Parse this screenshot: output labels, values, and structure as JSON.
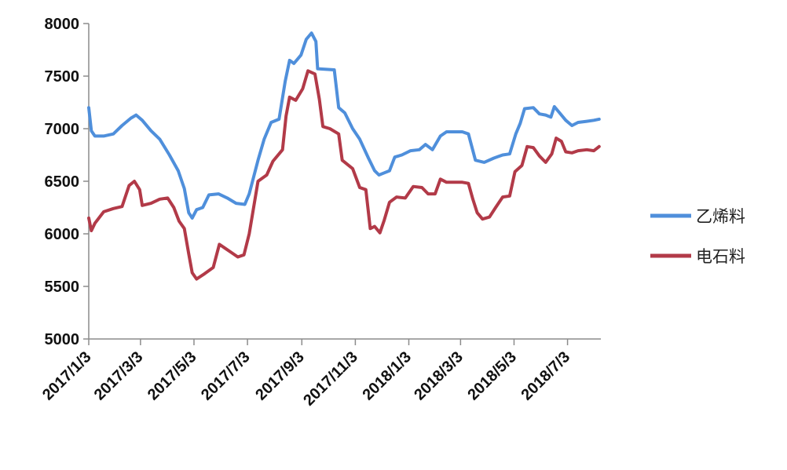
{
  "chart_data": {
    "type": "line",
    "title": "",
    "xlabel": "",
    "ylabel": "",
    "ylim": [
      5000,
      8000
    ],
    "yticks": [
      5000,
      5500,
      6000,
      6500,
      7000,
      7500,
      8000
    ],
    "xlim": [
      "2017-01-03",
      "2018-08-10"
    ],
    "x_tick_labels": [
      "2017/1/3",
      "2017/3/3",
      "2017/5/3",
      "2017/7/3",
      "2017/9/3",
      "2017/11/3",
      "2018/1/3",
      "2018/3/3",
      "2018/5/3",
      "2018/7/3"
    ],
    "x_tick_dates": [
      "2017-01-03",
      "2017-03-03",
      "2017-05-03",
      "2017-07-03",
      "2017-09-03",
      "2017-11-03",
      "2018-01-03",
      "2018-03-03",
      "2018-05-03",
      "2018-07-03"
    ],
    "grid": false,
    "legend_position": "right",
    "series": [
      {
        "name": "乙烯料",
        "color": "#4f8fdb",
        "points": [
          [
            "2017-01-03",
            7200
          ],
          [
            "2017-01-06",
            6980
          ],
          [
            "2017-01-10",
            6930
          ],
          [
            "2017-01-20",
            6930
          ],
          [
            "2017-01-31",
            6950
          ],
          [
            "2017-02-10",
            7030
          ],
          [
            "2017-02-20",
            7100
          ],
          [
            "2017-02-26",
            7130
          ],
          [
            "2017-03-05",
            7080
          ],
          [
            "2017-03-15",
            6980
          ],
          [
            "2017-03-25",
            6900
          ],
          [
            "2017-04-05",
            6750
          ],
          [
            "2017-04-15",
            6600
          ],
          [
            "2017-04-22",
            6430
          ],
          [
            "2017-04-27",
            6200
          ],
          [
            "2017-05-01",
            6150
          ],
          [
            "2017-05-06",
            6230
          ],
          [
            "2017-05-13",
            6250
          ],
          [
            "2017-05-20",
            6370
          ],
          [
            "2017-05-31",
            6380
          ],
          [
            "2017-06-10",
            6340
          ],
          [
            "2017-06-20",
            6290
          ],
          [
            "2017-06-30",
            6280
          ],
          [
            "2017-07-05",
            6380
          ],
          [
            "2017-07-15",
            6700
          ],
          [
            "2017-07-22",
            6900
          ],
          [
            "2017-07-30",
            7060
          ],
          [
            "2017-08-08",
            7090
          ],
          [
            "2017-08-15",
            7450
          ],
          [
            "2017-08-20",
            7650
          ],
          [
            "2017-08-25",
            7620
          ],
          [
            "2017-09-02",
            7700
          ],
          [
            "2017-09-08",
            7850
          ],
          [
            "2017-09-14",
            7910
          ],
          [
            "2017-09-19",
            7830
          ],
          [
            "2017-09-21",
            7570
          ],
          [
            "2017-10-10",
            7560
          ],
          [
            "2017-10-15",
            7200
          ],
          [
            "2017-10-22",
            7150
          ],
          [
            "2017-10-31",
            7000
          ],
          [
            "2017-11-08",
            6900
          ],
          [
            "2017-11-18",
            6720
          ],
          [
            "2017-11-25",
            6600
          ],
          [
            "2017-11-30",
            6560
          ],
          [
            "2017-12-06",
            6580
          ],
          [
            "2017-12-12",
            6600
          ],
          [
            "2017-12-18",
            6730
          ],
          [
            "2017-12-26",
            6750
          ],
          [
            "2018-01-05",
            6790
          ],
          [
            "2018-01-15",
            6800
          ],
          [
            "2018-01-22",
            6850
          ],
          [
            "2018-01-30",
            6800
          ],
          [
            "2018-02-08",
            6930
          ],
          [
            "2018-02-15",
            6970
          ],
          [
            "2018-02-25",
            6970
          ],
          [
            "2018-03-05",
            6970
          ],
          [
            "2018-03-12",
            6950
          ],
          [
            "2018-03-20",
            6700
          ],
          [
            "2018-03-30",
            6680
          ],
          [
            "2018-04-10",
            6720
          ],
          [
            "2018-04-20",
            6750
          ],
          [
            "2018-04-28",
            6760
          ],
          [
            "2018-05-05",
            6950
          ],
          [
            "2018-05-10",
            7050
          ],
          [
            "2018-05-15",
            7190
          ],
          [
            "2018-05-25",
            7200
          ],
          [
            "2018-06-01",
            7140
          ],
          [
            "2018-06-08",
            7130
          ],
          [
            "2018-06-14",
            7110
          ],
          [
            "2018-06-18",
            7210
          ],
          [
            "2018-06-24",
            7150
          ],
          [
            "2018-07-01",
            7080
          ],
          [
            "2018-07-08",
            7030
          ],
          [
            "2018-07-15",
            7060
          ],
          [
            "2018-07-25",
            7070
          ],
          [
            "2018-08-02",
            7080
          ],
          [
            "2018-08-08",
            7090
          ]
        ]
      },
      {
        "name": "电石料",
        "color": "#b23a48",
        "points": [
          [
            "2017-01-03",
            6150
          ],
          [
            "2017-01-06",
            6030
          ],
          [
            "2017-01-10",
            6100
          ],
          [
            "2017-01-20",
            6210
          ],
          [
            "2017-01-31",
            6240
          ],
          [
            "2017-02-10",
            6260
          ],
          [
            "2017-02-18",
            6460
          ],
          [
            "2017-02-24",
            6500
          ],
          [
            "2017-03-02",
            6420
          ],
          [
            "2017-03-05",
            6270
          ],
          [
            "2017-03-15",
            6290
          ],
          [
            "2017-03-25",
            6330
          ],
          [
            "2017-04-03",
            6340
          ],
          [
            "2017-04-10",
            6250
          ],
          [
            "2017-04-16",
            6120
          ],
          [
            "2017-04-22",
            6050
          ],
          [
            "2017-04-27",
            5810
          ],
          [
            "2017-05-01",
            5630
          ],
          [
            "2017-05-06",
            5570
          ],
          [
            "2017-05-15",
            5620
          ],
          [
            "2017-05-25",
            5680
          ],
          [
            "2017-06-01",
            5900
          ],
          [
            "2017-06-08",
            5860
          ],
          [
            "2017-06-15",
            5820
          ],
          [
            "2017-06-22",
            5780
          ],
          [
            "2017-06-29",
            5800
          ],
          [
            "2017-07-05",
            6000
          ],
          [
            "2017-07-15",
            6500
          ],
          [
            "2017-07-25",
            6560
          ],
          [
            "2017-08-01",
            6690
          ],
          [
            "2017-08-12",
            6800
          ],
          [
            "2017-08-16",
            7120
          ],
          [
            "2017-08-20",
            7300
          ],
          [
            "2017-08-27",
            7270
          ],
          [
            "2017-09-04",
            7380
          ],
          [
            "2017-09-10",
            7550
          ],
          [
            "2017-09-18",
            7520
          ],
          [
            "2017-09-23",
            7280
          ],
          [
            "2017-09-27",
            7020
          ],
          [
            "2017-10-05",
            7000
          ],
          [
            "2017-10-15",
            6950
          ],
          [
            "2017-10-19",
            6700
          ],
          [
            "2017-10-31",
            6620
          ],
          [
            "2017-11-08",
            6440
          ],
          [
            "2017-11-15",
            6420
          ],
          [
            "2017-11-20",
            6050
          ],
          [
            "2017-11-25",
            6070
          ],
          [
            "2017-12-01",
            6010
          ],
          [
            "2017-12-06",
            6130
          ],
          [
            "2017-12-12",
            6300
          ],
          [
            "2017-12-20",
            6350
          ],
          [
            "2017-12-30",
            6340
          ],
          [
            "2018-01-08",
            6450
          ],
          [
            "2018-01-18",
            6440
          ],
          [
            "2018-01-25",
            6380
          ],
          [
            "2018-02-02",
            6380
          ],
          [
            "2018-02-08",
            6520
          ],
          [
            "2018-02-15",
            6490
          ],
          [
            "2018-02-25",
            6490
          ],
          [
            "2018-03-05",
            6490
          ],
          [
            "2018-03-12",
            6480
          ],
          [
            "2018-03-17",
            6330
          ],
          [
            "2018-03-22",
            6200
          ],
          [
            "2018-03-28",
            6140
          ],
          [
            "2018-04-05",
            6160
          ],
          [
            "2018-04-12",
            6250
          ],
          [
            "2018-04-20",
            6350
          ],
          [
            "2018-04-28",
            6360
          ],
          [
            "2018-05-04",
            6590
          ],
          [
            "2018-05-12",
            6650
          ],
          [
            "2018-05-18",
            6830
          ],
          [
            "2018-05-25",
            6820
          ],
          [
            "2018-06-01",
            6740
          ],
          [
            "2018-06-08",
            6680
          ],
          [
            "2018-06-15",
            6760
          ],
          [
            "2018-06-20",
            6910
          ],
          [
            "2018-06-26",
            6880
          ],
          [
            "2018-07-01",
            6780
          ],
          [
            "2018-07-08",
            6770
          ],
          [
            "2018-07-15",
            6790
          ],
          [
            "2018-07-25",
            6800
          ],
          [
            "2018-08-02",
            6790
          ],
          [
            "2018-08-08",
            6830
          ]
        ]
      }
    ]
  }
}
